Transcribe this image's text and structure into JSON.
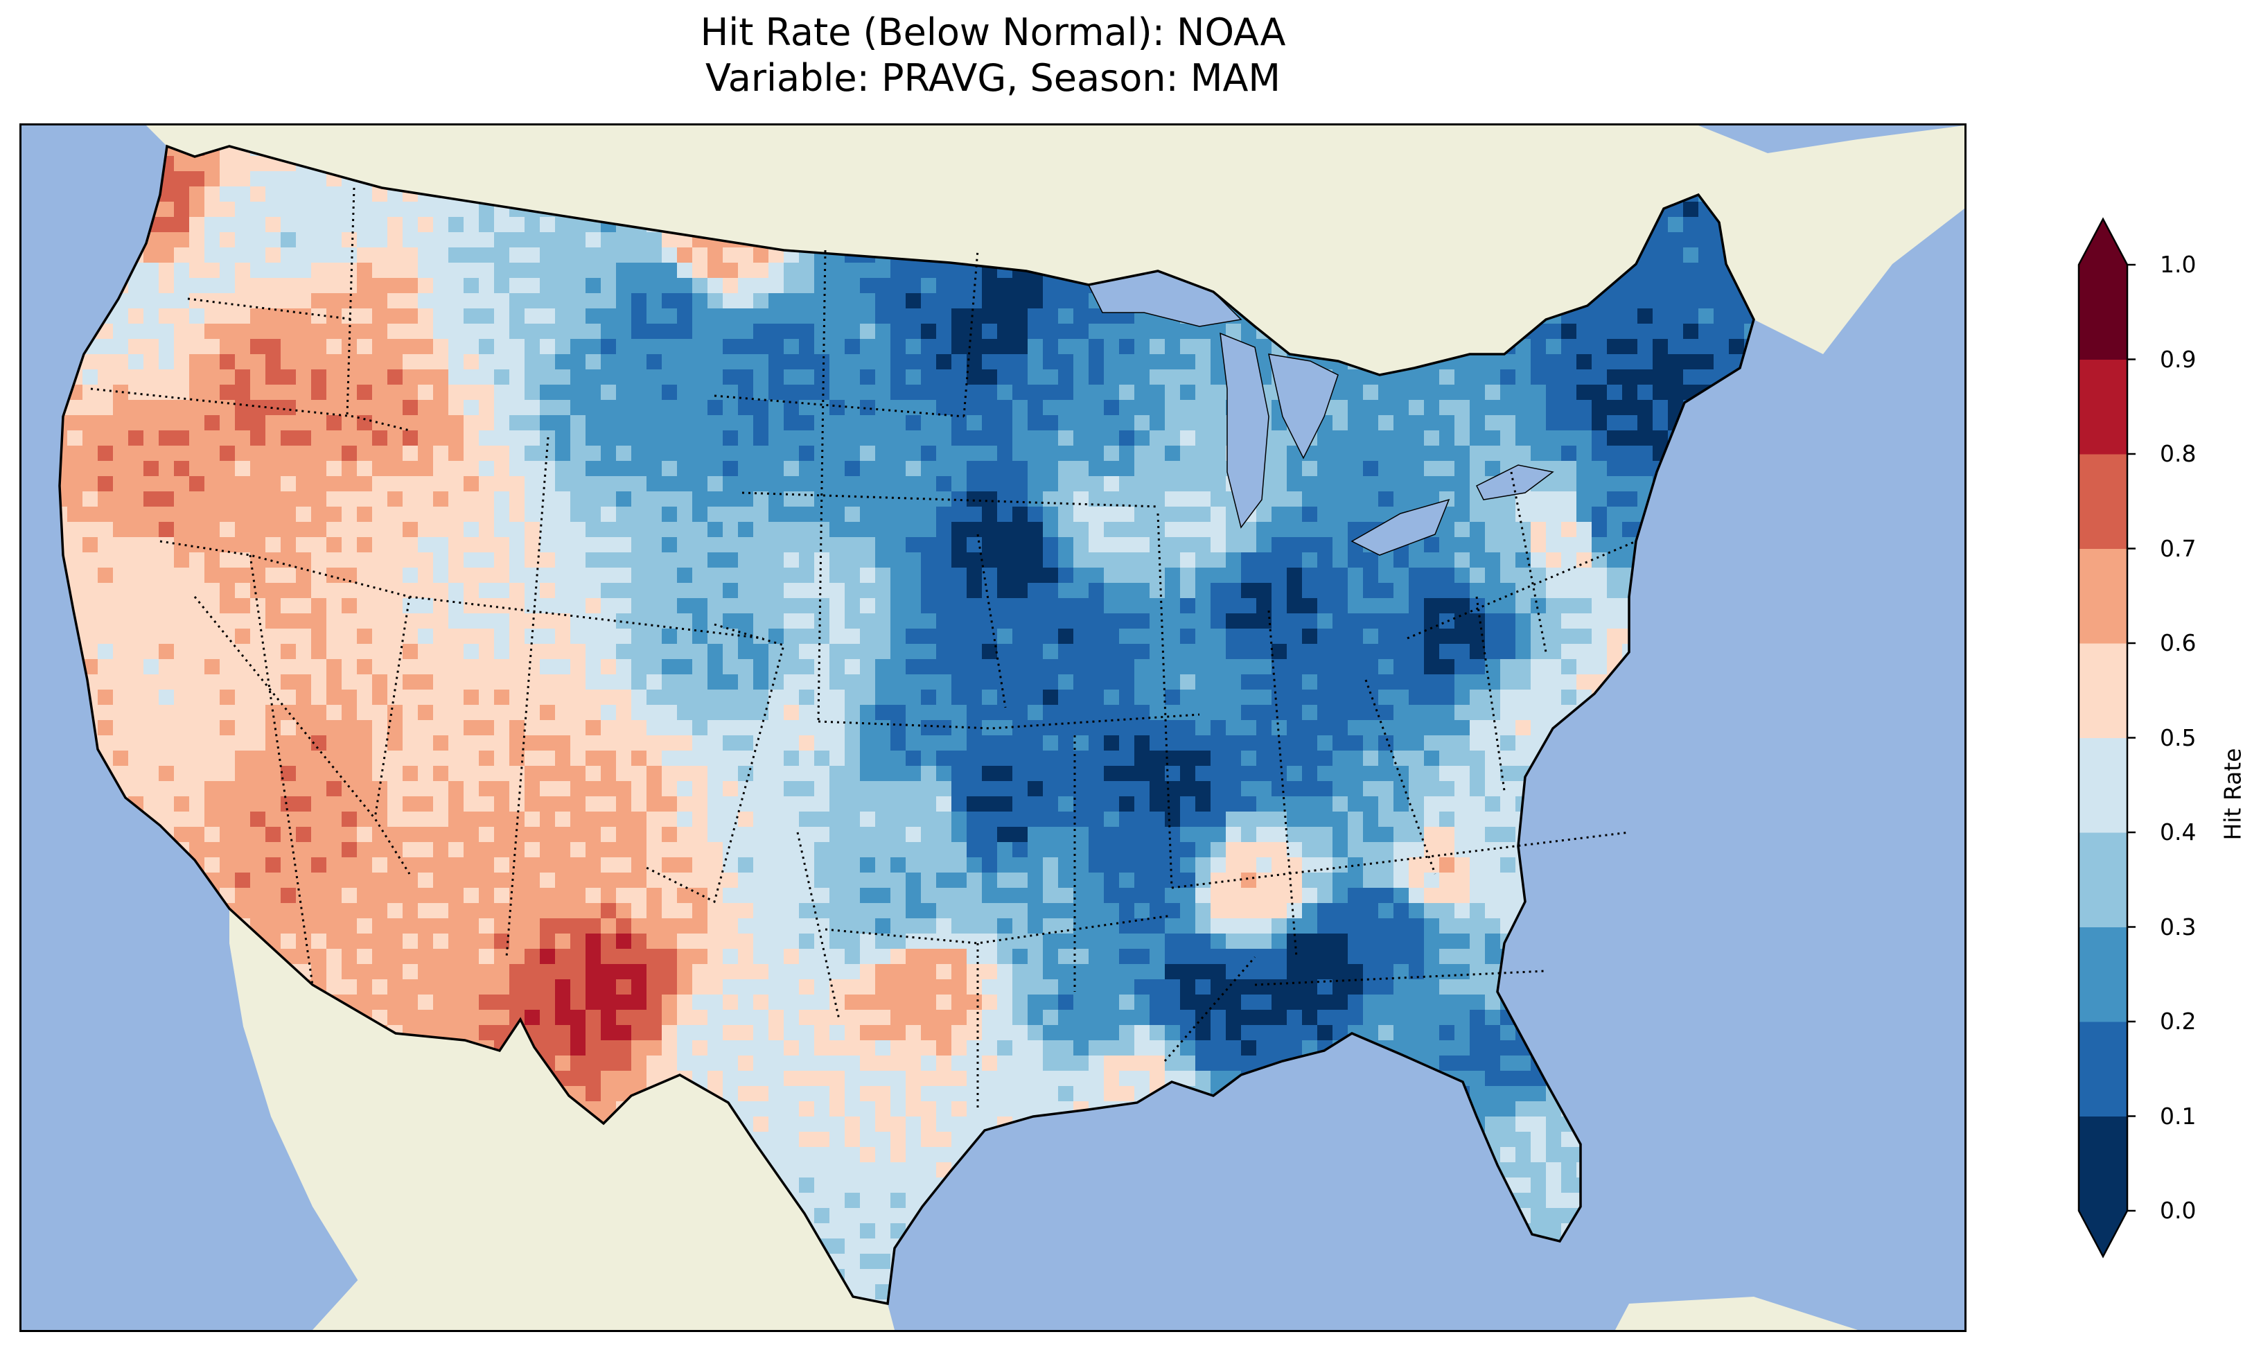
{
  "title_line1": "Hit Rate (Below Normal): NOAA",
  "title_line2": "Variable: PRAVG, Season: MAM",
  "colorbar": {
    "label": "Hit Rate",
    "ticks": [
      "0.0",
      "0.1",
      "0.2",
      "0.3",
      "0.4",
      "0.5",
      "0.6",
      "0.7",
      "0.8",
      "0.9",
      "1.0"
    ],
    "tick_values": [
      0.0,
      0.1,
      0.2,
      0.3,
      0.4,
      0.5,
      0.6,
      0.7,
      0.8,
      0.9,
      1.0
    ],
    "colors": [
      "#053061",
      "#2166ac",
      "#4393c3",
      "#92c5de",
      "#d1e5f0",
      "#fddbc7",
      "#f4a582",
      "#d6604d",
      "#b2182b",
      "#67001f"
    ],
    "extend": "both"
  },
  "map_colors": {
    "ocean": "#97b6e1",
    "land": "#efefdb",
    "coast": "#000000",
    "borders": "#000000"
  },
  "chart_data": {
    "type": "heatmap",
    "title": "Hit Rate (Below Normal): NOAA\nVariable: PRAVG, Season: MAM",
    "colorbar_label": "Hit Rate",
    "value_range": [
      0.0,
      1.0
    ],
    "levels": [
      0.0,
      0.1,
      0.2,
      0.3,
      0.4,
      0.5,
      0.6,
      0.7,
      0.8,
      0.9,
      1.0
    ],
    "extend": "both"
  }
}
